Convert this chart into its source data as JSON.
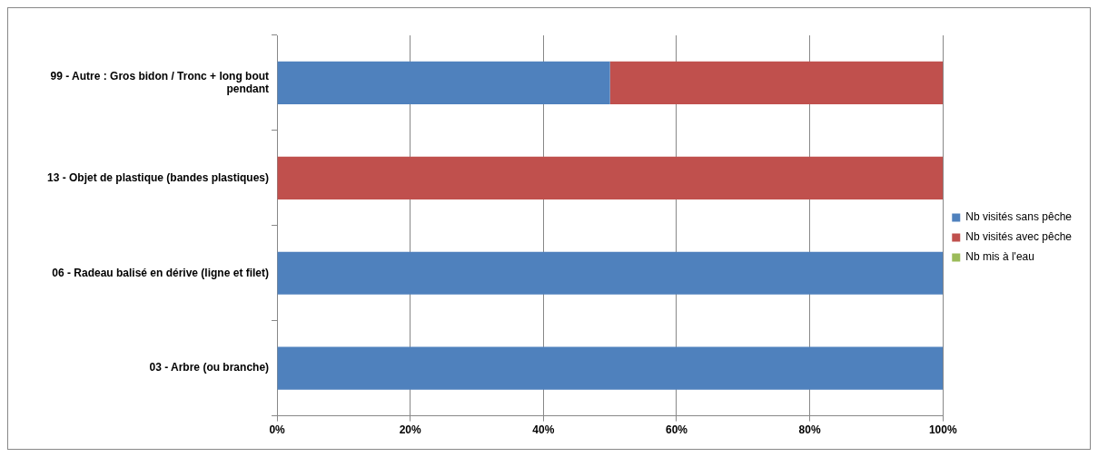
{
  "chart_data": {
    "type": "bar",
    "orientation": "horizontal",
    "stacked": true,
    "categories": [
      "99 - Autre : Gros bidon / Tronc + long bout pendant",
      "13 - Objet de plastique (bandes plastiques)",
      "06 - Radeau balisé en dérive (ligne et filet)",
      "03 - Arbre (ou branche)"
    ],
    "series": [
      {
        "name": "Nb visités sans pêche",
        "color": "#4f81bd",
        "values": [
          50,
          0,
          100,
          100
        ]
      },
      {
        "name": "Nb visités avec pêche",
        "color": "#c0504d",
        "values": [
          50,
          100,
          0,
          0
        ]
      },
      {
        "name": "Nb mis à l'eau",
        "color": "#9bbb59",
        "values": [
          0,
          0,
          0,
          0
        ]
      }
    ],
    "xlim": [
      0,
      100
    ],
    "xticks": [
      {
        "value": 0,
        "label": "0%"
      },
      {
        "value": 20,
        "label": "20%"
      },
      {
        "value": 40,
        "label": "40%"
      },
      {
        "value": 60,
        "label": "60%"
      },
      {
        "value": 80,
        "label": "80%"
      },
      {
        "value": 100,
        "label": "100%"
      }
    ],
    "grid": "x",
    "legend": "right"
  }
}
